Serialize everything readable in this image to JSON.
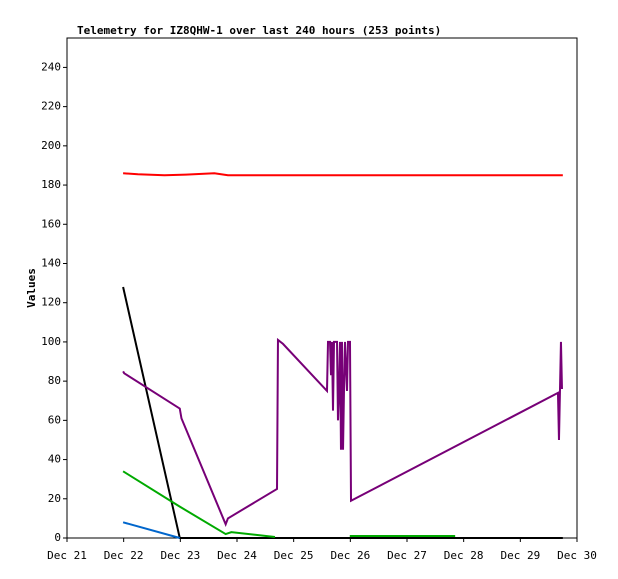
{
  "chart_data": {
    "type": "line",
    "title": "Telemetry for IZ8QHW-1 over last 240 hours (253 points)",
    "y_label": "Values",
    "xlim": [
      21,
      30
    ],
    "xticks": [
      {
        "value": 21,
        "label": "Dec 21"
      },
      {
        "value": 22,
        "label": "Dec 22"
      },
      {
        "value": 23,
        "label": "Dec 23"
      },
      {
        "value": 24,
        "label": "Dec 24"
      },
      {
        "value": 25,
        "label": "Dec 25"
      },
      {
        "value": 26,
        "label": "Dec 26"
      },
      {
        "value": 27,
        "label": "Dec 27"
      },
      {
        "value": 28,
        "label": "Dec 28"
      },
      {
        "value": 29,
        "label": "Dec 29"
      },
      {
        "value": 30,
        "label": "Dec 30"
      }
    ],
    "ylim": [
      0,
      255
    ],
    "yticks": [
      0,
      20,
      40,
      60,
      80,
      100,
      120,
      140,
      160,
      180,
      200,
      220,
      240
    ],
    "grid": false,
    "series": [
      {
        "color": "#ff0000",
        "x": [
          21.99,
          22.25,
          22.72,
          23.1,
          23.6,
          23.84,
          29.75
        ],
        "values": [
          186,
          185.5,
          185,
          185.3,
          186,
          185,
          185
        ]
      },
      {
        "color": "#000000",
        "x": [
          21.99,
          22.99,
          29.75
        ],
        "values": [
          128,
          0,
          0
        ]
      },
      {
        "color": "#0066cc",
        "x": [
          21.99,
          22.99
        ],
        "values": [
          8,
          0
        ]
      },
      {
        "color": "#00aa00",
        "x": [
          21.99,
          22.99,
          23.8,
          23.9,
          24.67,
          25.3,
          25.99,
          27.85
        ],
        "values": [
          34,
          16,
          2,
          3,
          0.5,
          null,
          1,
          1
        ]
      },
      {
        "color": "#770077",
        "x": [
          21.99,
          22.01,
          22.99,
          23.02,
          23.8,
          23.84,
          24.706,
          24.723,
          24.812,
          25.588,
          25.606,
          25.641,
          25.659,
          25.676,
          25.694,
          25.712,
          25.765,
          25.782,
          25.8,
          25.818,
          25.835,
          25.853,
          25.871,
          25.888,
          25.906,
          25.941,
          25.959,
          25.994,
          26.012,
          29.664,
          29.682,
          29.7,
          29.717,
          29.735
        ],
        "values": [
          85,
          84,
          66,
          61,
          7,
          10,
          25,
          101,
          99,
          75,
          100,
          100,
          83,
          100,
          65,
          100,
          100,
          60,
          75,
          100,
          45,
          100,
          45,
          75,
          100,
          75,
          100,
          100,
          19,
          74,
          50,
          76,
          100,
          76
        ]
      }
    ]
  }
}
